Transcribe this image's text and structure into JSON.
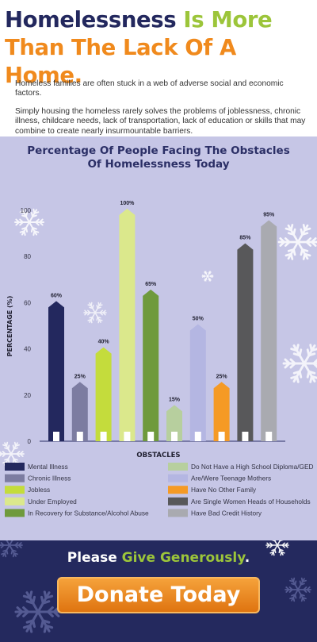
{
  "header": {
    "title_part1": "Homelessness",
    "title_part2": "Is More",
    "title_line2": "Than The Lack Of A Home.",
    "para1": "Homeless families are often stuck in a web of adverse social and economic factors.",
    "para2": "Simply housing the homeless rarely solves the problems of joblessness, chronic illness, childcare needs, lack of transportation, lack of education or skills that may combine to create nearly insurmountable barriers."
  },
  "chart_data": {
    "type": "bar",
    "title_line1": "Percentage Of People Facing The Obstacles",
    "title_line2": "Of Homelessness Today",
    "xlabel": "OBSTACLES",
    "ylabel": "PERCENTAGE (%)",
    "ylim": [
      0,
      100
    ],
    "yticks": [
      0,
      20,
      40,
      60,
      80,
      100
    ],
    "grid": false,
    "legend_position": "bottom",
    "categories": [
      "Mental Illness",
      "Chronic Illness",
      "Jobless",
      "Under Employed",
      "In Recovery for Substance/Alcohol Abuse",
      "Do Not Have a High School Diploma/GED",
      "Are/Were Teenage Mothers",
      "Have No Other Family",
      "Are Single Women Heads of Households",
      "Have Bad Credit History"
    ],
    "values": [
      60,
      25,
      40,
      100,
      65,
      15,
      50,
      25,
      85,
      95
    ],
    "value_labels": [
      "60%",
      "25%",
      "40%",
      "100%",
      "65%",
      "15%",
      "50%",
      "25%",
      "85%",
      "95%"
    ],
    "colors": [
      "#23285e",
      "#7c7ca1",
      "#c4dc3c",
      "#dbe88c",
      "#6f9a3c",
      "#b7cf9e",
      "#b4b6e2",
      "#f59a25",
      "#58585a",
      "#a9aab0"
    ]
  },
  "footer": {
    "give_part1": "Please",
    "give_part2": "Give Generously",
    "give_part3": ".",
    "donate_label": "Donate Today"
  }
}
